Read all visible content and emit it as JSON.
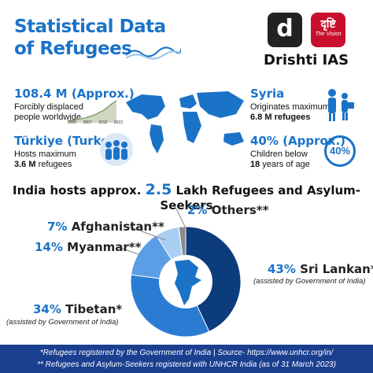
{
  "header": {
    "title_line1": "Statistical Data",
    "title_line2": "of Refugees",
    "brand": "Drishti IAS",
    "logo_left_letter": "d",
    "logo_right_text": "दृष्टि",
    "logo_right_tagline": "The Vision"
  },
  "stats": {
    "displaced": {
      "value": "108.4 M (Approx.)",
      "text": "Forcibly displaced people worldwide",
      "years": [
        "2000",
        "2007",
        "2012",
        "2022"
      ]
    },
    "syria": {
      "title": "Syria",
      "line1": "Originates maximum",
      "line2": "6.8 M refugees"
    },
    "turkiye": {
      "title": "Türkiye (Turkey)",
      "line1": "Hosts maximum",
      "line2_bold": "3.6 M",
      "line2_rest": " refugees"
    },
    "children": {
      "title": "40% (Approx.)",
      "line1": "Children below",
      "line2_bold": "18",
      "line2_rest": " years of age",
      "badge": "40%"
    }
  },
  "headline": {
    "pre": "India hosts approx. ",
    "num": "2.5",
    "post": " Lakh Refugees and Asylum-Seekers"
  },
  "chart_data": {
    "type": "pie",
    "title": "India hosts approx. 2.5 Lakh Refugees and Asylum-Seekers",
    "categories": [
      "Sri Lankan*",
      "Tibetan*",
      "Myanmar**",
      "Afghanistan**",
      "Others**"
    ],
    "values": [
      43,
      34,
      14,
      7,
      2
    ],
    "unit": "%",
    "colors": [
      "#0c3c7c",
      "#2a7cd3",
      "#5b9ee6",
      "#aacdf3",
      "#8a8a8a"
    ],
    "labels": {
      "srilankan": {
        "pct": "43%",
        "name": "Sri Lankan*",
        "note": "(assisted by Government of India)"
      },
      "tibetan": {
        "pct": "34%",
        "name": "Tibetan*",
        "note": "(assisted by Government of India)"
      },
      "myanmar": {
        "pct": "14%",
        "name": "Myanmar**"
      },
      "afghanistan": {
        "pct": "7%",
        "name": "Afghanistan**"
      },
      "others": {
        "pct": "2%",
        "name": "Others**"
      }
    }
  },
  "footer": {
    "line1": "*Refugees registered by the Government of India  |  Source- https://www.unhcr.org/in/",
    "line2": "** Refugees and Asylum-Seekers registered with UNHCR India (as of 31 March 2023)"
  }
}
